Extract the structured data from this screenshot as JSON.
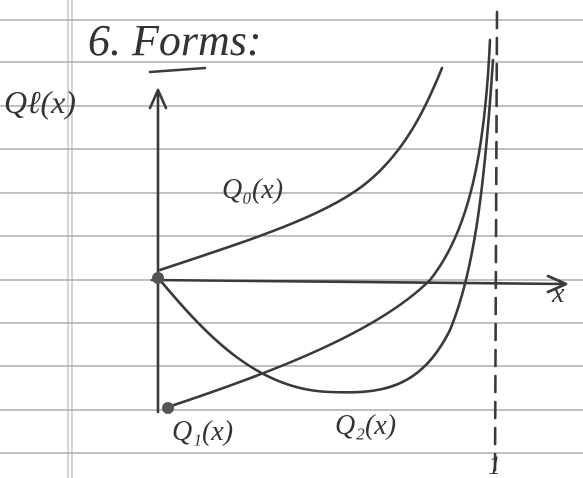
{
  "header": {
    "title": "6. Forms:"
  },
  "axes": {
    "y_label": "Qℓ(x)",
    "x_label": "x",
    "asymptote_label": "1"
  },
  "curves": [
    {
      "label": "Q₀(x)"
    },
    {
      "label": "Q₁(x)"
    },
    {
      "label": "Q₂(x)"
    }
  ]
}
